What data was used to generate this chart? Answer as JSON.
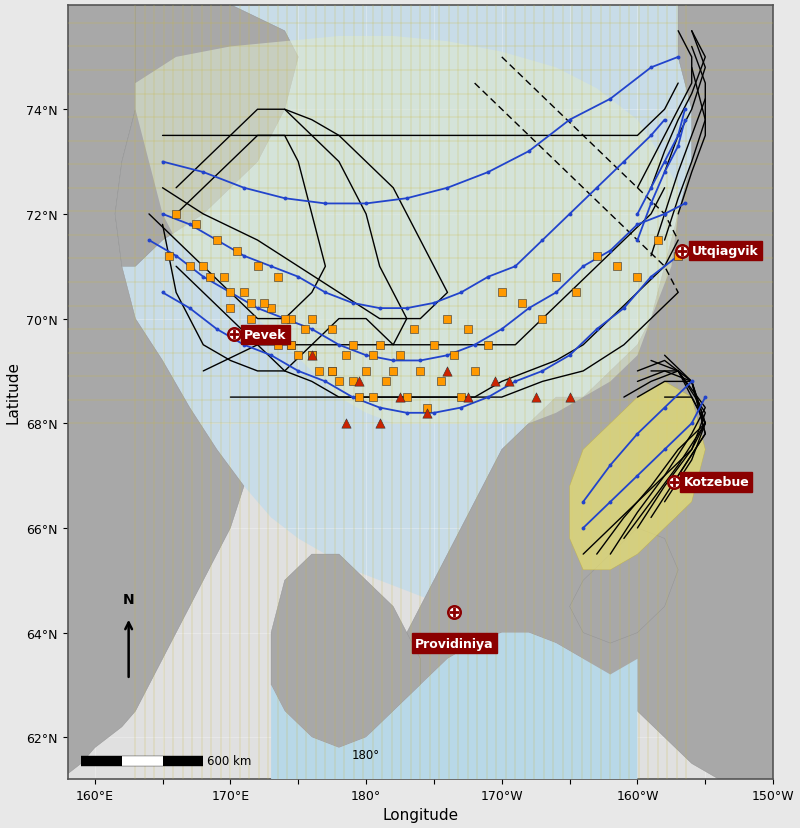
{
  "fig_width": 8.0,
  "fig_height": 8.29,
  "dpi": 100,
  "bg_outer": "#e8e8e8",
  "ocean_color": "#d0e8f0",
  "land_dark": "#999999",
  "land_medium": "#b0b0b0",
  "survey_grid_color": "#c8b850",
  "survey_bg_light": "#d8e8c8",
  "us_survey_yellow": "#e8d878",
  "xlim": [
    158,
    210
  ],
  "ylim": [
    61.2,
    76.0
  ],
  "xtick_vals": [
    160,
    165,
    170,
    175,
    180,
    185,
    190,
    195,
    200,
    205,
    210
  ],
  "xtick_shown": [
    160,
    170,
    180,
    190,
    200,
    210
  ],
  "ytick_vals": [
    62,
    64,
    66,
    68,
    70,
    72,
    74
  ],
  "cities": [
    {
      "name": "Utqiagvik",
      "lon": 203.3,
      "lat": 71.3,
      "ha": "left",
      "label_lon": 204.0,
      "label_lat": 71.3
    },
    {
      "name": "Pevek",
      "lon": 170.3,
      "lat": 69.7,
      "ha": "left",
      "label_lon": 171.0,
      "label_lat": 69.7
    },
    {
      "name": "Kotzebue",
      "lon": 202.7,
      "lat": 66.88,
      "ha": "left",
      "label_lon": 203.4,
      "label_lat": 66.88
    },
    {
      "name": "Providiniya",
      "lon": 186.5,
      "lat": 64.4,
      "ha": "center",
      "label_lon": 186.5,
      "label_lat": 63.8
    }
  ]
}
